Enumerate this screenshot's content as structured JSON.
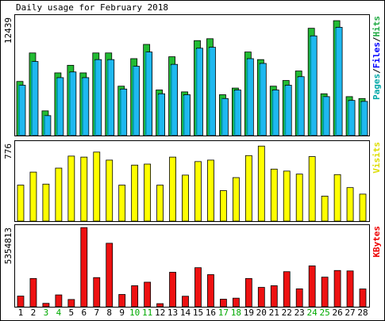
{
  "chart_data": {
    "type": "bar",
    "title": "Daily usage for February 2018",
    "categories": [
      "1",
      "2",
      "3",
      "4",
      "5",
      "6",
      "7",
      "8",
      "9",
      "10",
      "11",
      "12",
      "13",
      "14",
      "15",
      "16",
      "17",
      "18",
      "19",
      "20",
      "21",
      "22",
      "23",
      "24",
      "25",
      "26",
      "27",
      "28"
    ],
    "weekend_days": [
      "3",
      "4",
      "10",
      "11",
      "17",
      "18",
      "24",
      "25"
    ],
    "panels": [
      {
        "name": "hits",
        "ymax_label": "12439",
        "ymax": 12439,
        "legend": [
          {
            "text": "Pages",
            "color": "#00a8a8"
          },
          {
            "text": "/",
            "color": "#000000"
          },
          {
            "text": "Files",
            "color": "#0000ff"
          },
          {
            "text": "/",
            "color": "#000000"
          },
          {
            "text": "Hits",
            "color": "#22aa44"
          }
        ],
        "series": [
          {
            "name": "Hits",
            "color": "#22bb33",
            "values": [
              5700,
              8700,
              2600,
              6600,
              7400,
              6600,
              8700,
              8700,
              5200,
              8100,
              9600,
              4800,
              8300,
              4600,
              10000,
              10200,
              4300,
              5000,
              8800,
              8000,
              5200,
              5800,
              6800,
              11300,
              4400,
              12100,
              4100,
              3900
            ]
          },
          {
            "name": "Files",
            "color": "#1fb8f0",
            "values": [
              5300,
              7800,
              2100,
              6100,
              6700,
              6100,
              8000,
              8000,
              4900,
              7300,
              8800,
              4400,
              7500,
              4300,
              9200,
              9300,
              3900,
              4800,
              8100,
              7600,
              4800,
              5300,
              6200,
              10500,
              4100,
              11400,
              3700,
              3600
            ]
          },
          {
            "name": "Pages",
            "color": "#009aa0",
            "values": [
              5300,
              7800,
              2100,
              6000,
              6600,
              6000,
              7900,
              7900,
              4800,
              7300,
              8800,
              4300,
              7400,
              4200,
              9100,
              9200,
              3900,
              4700,
              8000,
              7500,
              4700,
              5200,
              6100,
              10400,
              4100,
              11300,
              3600,
              3500
            ]
          }
        ]
      },
      {
        "name": "visits",
        "ymax_label": "776",
        "ymax": 776,
        "legend": [
          {
            "text": "Visits",
            "color": "#dddd00"
          }
        ],
        "series": [
          {
            "name": "Visits",
            "color": "#ffff00",
            "values": [
              360,
              490,
              370,
              530,
              650,
              640,
              690,
              610,
              360,
              560,
              570,
              360,
              640,
              460,
              595,
              610,
              305,
              435,
              655,
              750,
              520,
              500,
              470,
              645,
              250,
              465,
              335,
              270
            ]
          }
        ]
      },
      {
        "name": "kbytes",
        "ymax_label": "5354813",
        "ymax": 5354813,
        "legend": [
          {
            "text": "KBytes",
            "color": "#ee0000"
          }
        ],
        "series": [
          {
            "name": "KBytes",
            "color": "#ee1111",
            "values": [
              720000,
              1910000,
              230000,
              800000,
              490000,
              5350000,
              1970000,
              4290000,
              830000,
              1420000,
              1660000,
              210000,
              2330000,
              710000,
              2640000,
              2170000,
              510000,
              580000,
              1910000,
              1310000,
              1420000,
              2370000,
              1210000,
              2760000,
              2000000,
              2450000,
              2420000,
              1200000
            ]
          }
        ]
      }
    ]
  }
}
